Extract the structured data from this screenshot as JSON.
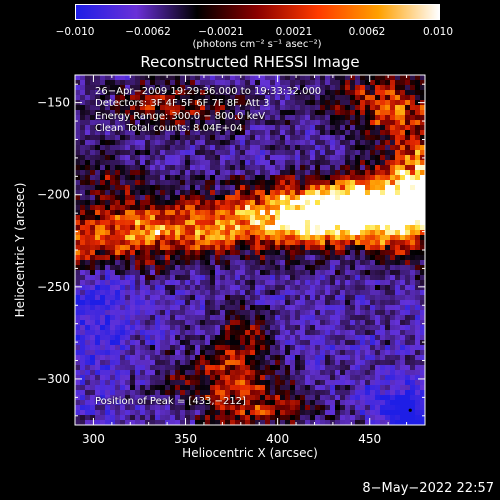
{
  "colorbar": {
    "ticks": [
      "−0.010",
      "−0.0062",
      "−0.0021",
      "0.0021",
      "0.0062",
      "0.010"
    ],
    "units": "(photons cm⁻² s⁻¹ asec⁻²)",
    "colors": [
      "#1e1ee6",
      "#6a30d8",
      "#000000",
      "#8b0000",
      "#ff3a00",
      "#ffa000",
      "#ffffff"
    ]
  },
  "title": "Reconstructed RHESSI Image",
  "annotations": {
    "line1": "26−Apr−2009 19:29:36.000 to 19:33:32.000",
    "line2": "Detectors: 3F 4F 5F 6F 7F 8F, Att 3",
    "line3": "Energy Range: 300.0 − 800.0 keV",
    "line4": "Clean     Total counts: 8.04E+04",
    "peak": "Position of Peak = [433,−212]"
  },
  "timestamp": "8−May−2022 22:57",
  "chart_data": {
    "type": "heatmap",
    "title": "Reconstructed RHESSI Image",
    "xlabel": "Heliocentric X (arcsec)",
    "ylabel": "Heliocentric Y (arcsec)",
    "xlim": [
      290,
      480
    ],
    "ylim": [
      -325,
      -135
    ],
    "x_ticks": [
      300,
      350,
      400,
      450
    ],
    "y_ticks": [
      -150,
      -200,
      -250,
      -300
    ],
    "colorbar_range": [
      -0.01,
      0.01
    ],
    "peak_position": [
      433,
      -212
    ],
    "bright_features": [
      {
        "x": [
          290,
          480
        ],
        "y": [
          -200,
          -240
        ],
        "level": "high"
      },
      {
        "x": [
          420,
          480
        ],
        "y": [
          -190,
          -225
        ],
        "level": "peak"
      },
      {
        "x": [
          310,
          380
        ],
        "y": [
          -140,
          -170
        ],
        "level": "medium"
      },
      {
        "x": [
          340,
          420
        ],
        "y": [
          -280,
          -325
        ],
        "level": "medium"
      }
    ]
  }
}
